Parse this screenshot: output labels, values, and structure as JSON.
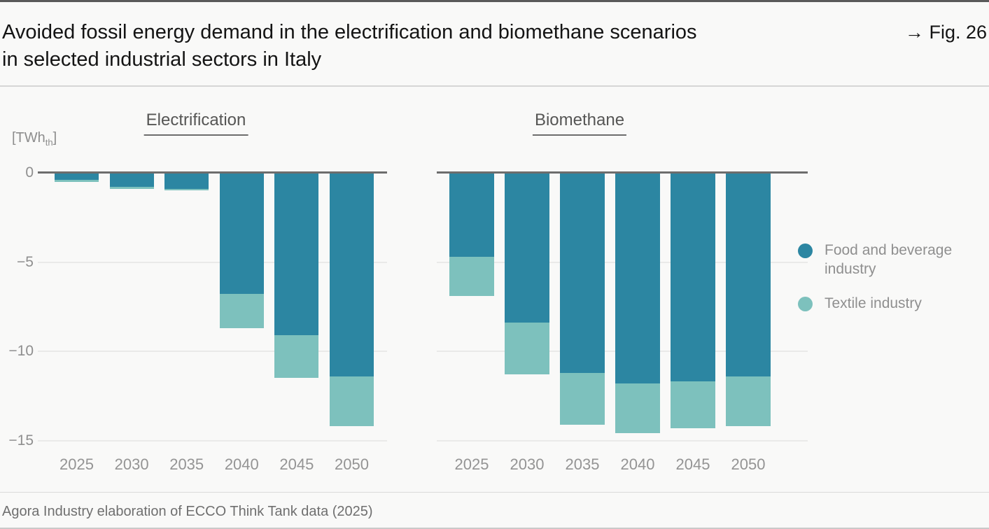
{
  "header": {
    "title_line1": "Avoided fossil energy demand in the electrification and biomethane scenarios",
    "title_line2": "in selected industrial sectors in Italy",
    "fig_label": "→ Fig. 26"
  },
  "y_axis_unit": {
    "main": "[TWh",
    "sub": "th",
    "close": "]"
  },
  "legend": [
    {
      "label": "Food and beverage industry",
      "color": "#2C86A2"
    },
    {
      "label": "Textile industry",
      "color": "#7DC1BD"
    }
  ],
  "chart_data": [
    {
      "type": "bar",
      "stacked": true,
      "title": "Electrification",
      "categories": [
        "2025",
        "2030",
        "2035",
        "2040",
        "2045",
        "2050"
      ],
      "series": [
        {
          "name": "Food and beverage industry",
          "color": "#2C86A2",
          "values": [
            -0.4,
            -0.8,
            -0.9,
            -6.8,
            -9.1,
            -11.4
          ]
        },
        {
          "name": "Textile industry",
          "color": "#7DC1BD",
          "values": [
            -0.1,
            -0.1,
            -0.1,
            -1.9,
            -2.4,
            -2.8
          ]
        }
      ],
      "ylabel": "[TWhth]",
      "ylim": [
        -16.5,
        0
      ],
      "yticks": [
        {
          "value": 0,
          "label": "0"
        },
        {
          "value": -5,
          "label": "−5"
        },
        {
          "value": -10,
          "label": "−10"
        },
        {
          "value": -15,
          "label": "−15"
        }
      ],
      "grid": true,
      "legend_position": "right"
    },
    {
      "type": "bar",
      "stacked": true,
      "title": "Biomethane",
      "categories": [
        "2025",
        "2030",
        "2035",
        "2040",
        "2045",
        "2050"
      ],
      "series": [
        {
          "name": "Food and beverage industry",
          "color": "#2C86A2",
          "values": [
            -4.7,
            -8.4,
            -11.2,
            -11.8,
            -11.7,
            -11.4
          ]
        },
        {
          "name": "Textile industry",
          "color": "#7DC1BD",
          "values": [
            -2.2,
            -2.9,
            -2.9,
            -2.8,
            -2.6,
            -2.8
          ]
        }
      ],
      "ylabel": "[TWhth]",
      "ylim": [
        -16.5,
        0
      ],
      "yticks": [
        {
          "value": 0,
          "label": "0"
        },
        {
          "value": -5,
          "label": "−5"
        },
        {
          "value": -10,
          "label": "−10"
        },
        {
          "value": -15,
          "label": "−15"
        }
      ],
      "grid": true,
      "legend_position": "right"
    }
  ],
  "footer": {
    "source": "Agora Industry elaboration of ECCO Think Tank data (2025)"
  }
}
